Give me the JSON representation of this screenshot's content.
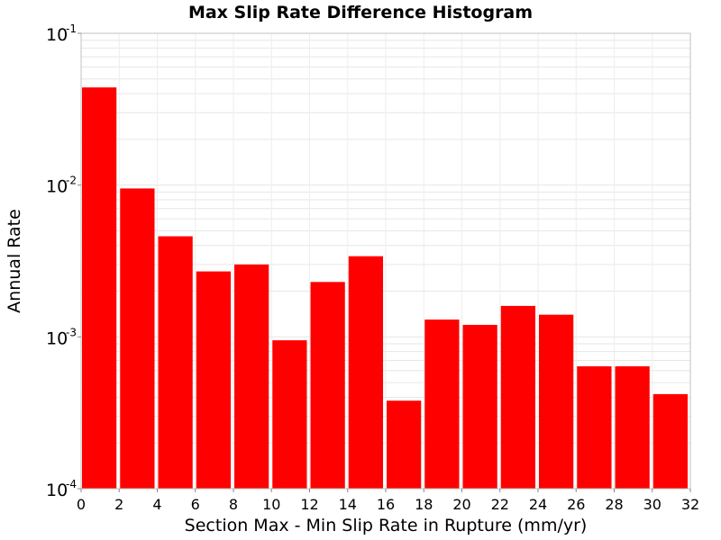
{
  "chart_data": {
    "type": "bar",
    "title": "Max Slip Rate Difference Histogram",
    "xlabel": "Section Max - Min Slip Rate in Rupture (mm/yr)",
    "ylabel": "Annual Rate",
    "y_scale": "log",
    "xlim": [
      0,
      32
    ],
    "ylim": [
      0.0001,
      0.1
    ],
    "bar_color": "#ff0000",
    "grid": true,
    "x_ticks": [
      "0",
      "2",
      "4",
      "6",
      "8",
      "10",
      "12",
      "14",
      "16",
      "18",
      "20",
      "22",
      "24",
      "26",
      "28",
      "30",
      "32"
    ],
    "y_ticks": [
      {
        "base": "10",
        "exp": "-1"
      },
      {
        "base": "10",
        "exp": "-2"
      },
      {
        "base": "10",
        "exp": "-3"
      },
      {
        "base": "10",
        "exp": "-4"
      }
    ],
    "bins": [
      {
        "x0": 0,
        "x1": 2,
        "value": 0.044
      },
      {
        "x0": 2,
        "x1": 4,
        "value": 0.0095
      },
      {
        "x0": 4,
        "x1": 6,
        "value": 0.0046
      },
      {
        "x0": 6,
        "x1": 8,
        "value": 0.0027
      },
      {
        "x0": 8,
        "x1": 10,
        "value": 0.003
      },
      {
        "x0": 10,
        "x1": 12,
        "value": 0.00095
      },
      {
        "x0": 12,
        "x1": 14,
        "value": 0.0023
      },
      {
        "x0": 14,
        "x1": 16,
        "value": 0.0034
      },
      {
        "x0": 16,
        "x1": 18,
        "value": 0.00038
      },
      {
        "x0": 18,
        "x1": 20,
        "value": 0.0013
      },
      {
        "x0": 20,
        "x1": 22,
        "value": 0.0012
      },
      {
        "x0": 22,
        "x1": 24,
        "value": 0.0016
      },
      {
        "x0": 24,
        "x1": 26,
        "value": 0.0014
      },
      {
        "x0": 26,
        "x1": 28,
        "value": 0.00064
      },
      {
        "x0": 28,
        "x1": 30,
        "value": 0.00064
      },
      {
        "x0": 30,
        "x1": 32,
        "value": 0.00042
      }
    ]
  }
}
